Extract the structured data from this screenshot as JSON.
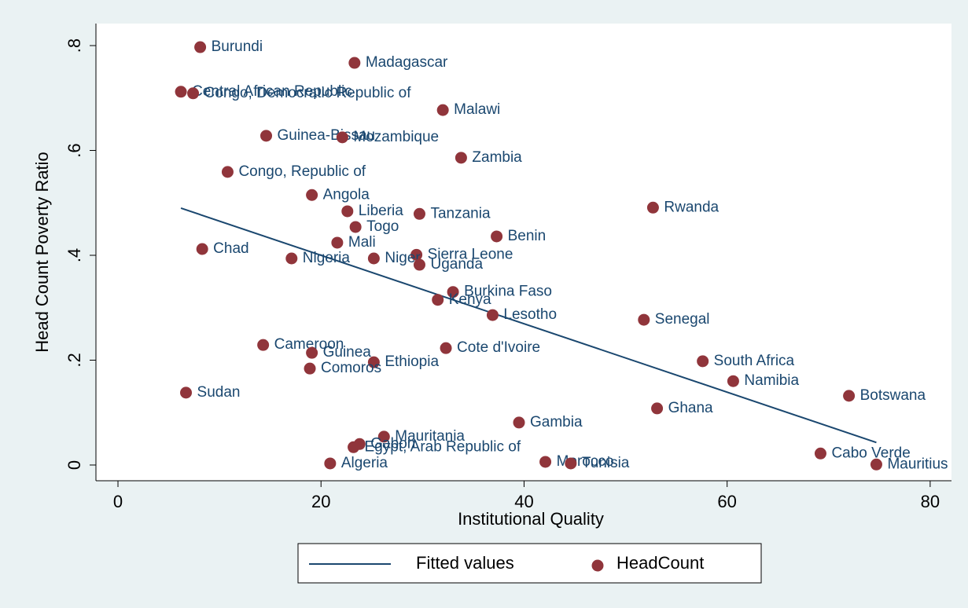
{
  "chart_data": {
    "type": "scatter",
    "x_label": "Institutional Quality",
    "y_label": "Head Count Poverty Ratio",
    "xlim": [
      -2.17,
      82.1
    ],
    "ylim": [
      -0.03,
      0.842
    ],
    "xticks": [
      0,
      20,
      40,
      60,
      80
    ],
    "yticks": [
      0,
      {
        "value": 0.2,
        "label": ".2"
      },
      {
        "value": 0.4,
        "label": ".4"
      },
      {
        "value": 0.6,
        "label": ".6"
      },
      {
        "value": 0.8,
        "label": ".8"
      }
    ],
    "grid": false,
    "legend": "bottom",
    "series": [
      {
        "name": "Fitted values",
        "color": "#1a476f",
        "kind": "line",
        "x": [
          6.2,
          74.7
        ],
        "values": [
          0.49,
          0.043
        ]
      },
      {
        "name": "HeadCount",
        "color": "#90353b",
        "kind": "points",
        "labels": [
          "Burundi",
          "Madagascar",
          "Central African Republic",
          "Congo, Democratic Republic of",
          "Malawi",
          "Guinea-Bissau",
          "Mozambique",
          "Zambia",
          "Congo, Republic of",
          "Angola",
          "Liberia",
          "Tanzania",
          "Rwanda",
          "Togo",
          "Benin",
          "Mali",
          "Chad",
          "Sierra Leone",
          "Nigeria",
          "Niger",
          "Uganda",
          "Burkina Faso",
          "Kenya",
          "Lesotho",
          "Senegal",
          "Cameroon",
          "Cote d'Ivoire",
          "Guinea",
          "South Africa",
          "Ethiopia",
          "Comoros",
          "Namibia",
          "Sudan",
          "Botswana",
          "Ghana",
          "Gambia",
          "Mauritania",
          "Gabon",
          "Egypt, Arab Republic of",
          "Cabo Verde",
          "Morocco",
          "Algeria",
          "Tunisia",
          "Mauritius"
        ],
        "x": [
          8.1,
          23.3,
          6.2,
          7.4,
          32.0,
          14.6,
          22.1,
          33.8,
          10.8,
          19.1,
          22.6,
          29.7,
          52.7,
          23.4,
          37.3,
          21.6,
          8.3,
          29.4,
          17.1,
          25.2,
          29.7,
          33.0,
          31.5,
          36.9,
          51.8,
          14.3,
          32.3,
          19.1,
          57.6,
          25.2,
          18.9,
          60.6,
          6.7,
          72.0,
          53.1,
          39.5,
          26.2,
          23.8,
          23.2,
          69.2,
          42.1,
          20.9,
          44.6,
          74.7
        ],
        "values": [
          0.797,
          0.767,
          0.712,
          0.709,
          0.677,
          0.628,
          0.625,
          0.586,
          0.559,
          0.515,
          0.484,
          0.479,
          0.491,
          0.454,
          0.436,
          0.424,
          0.412,
          0.401,
          0.394,
          0.394,
          0.382,
          0.33,
          0.315,
          0.286,
          0.277,
          0.229,
          0.223,
          0.214,
          0.198,
          0.196,
          0.184,
          0.16,
          0.138,
          0.132,
          0.108,
          0.081,
          0.054,
          0.04,
          0.034,
          0.022,
          0.006,
          0.003,
          0.003,
          0.001
        ]
      }
    ]
  }
}
